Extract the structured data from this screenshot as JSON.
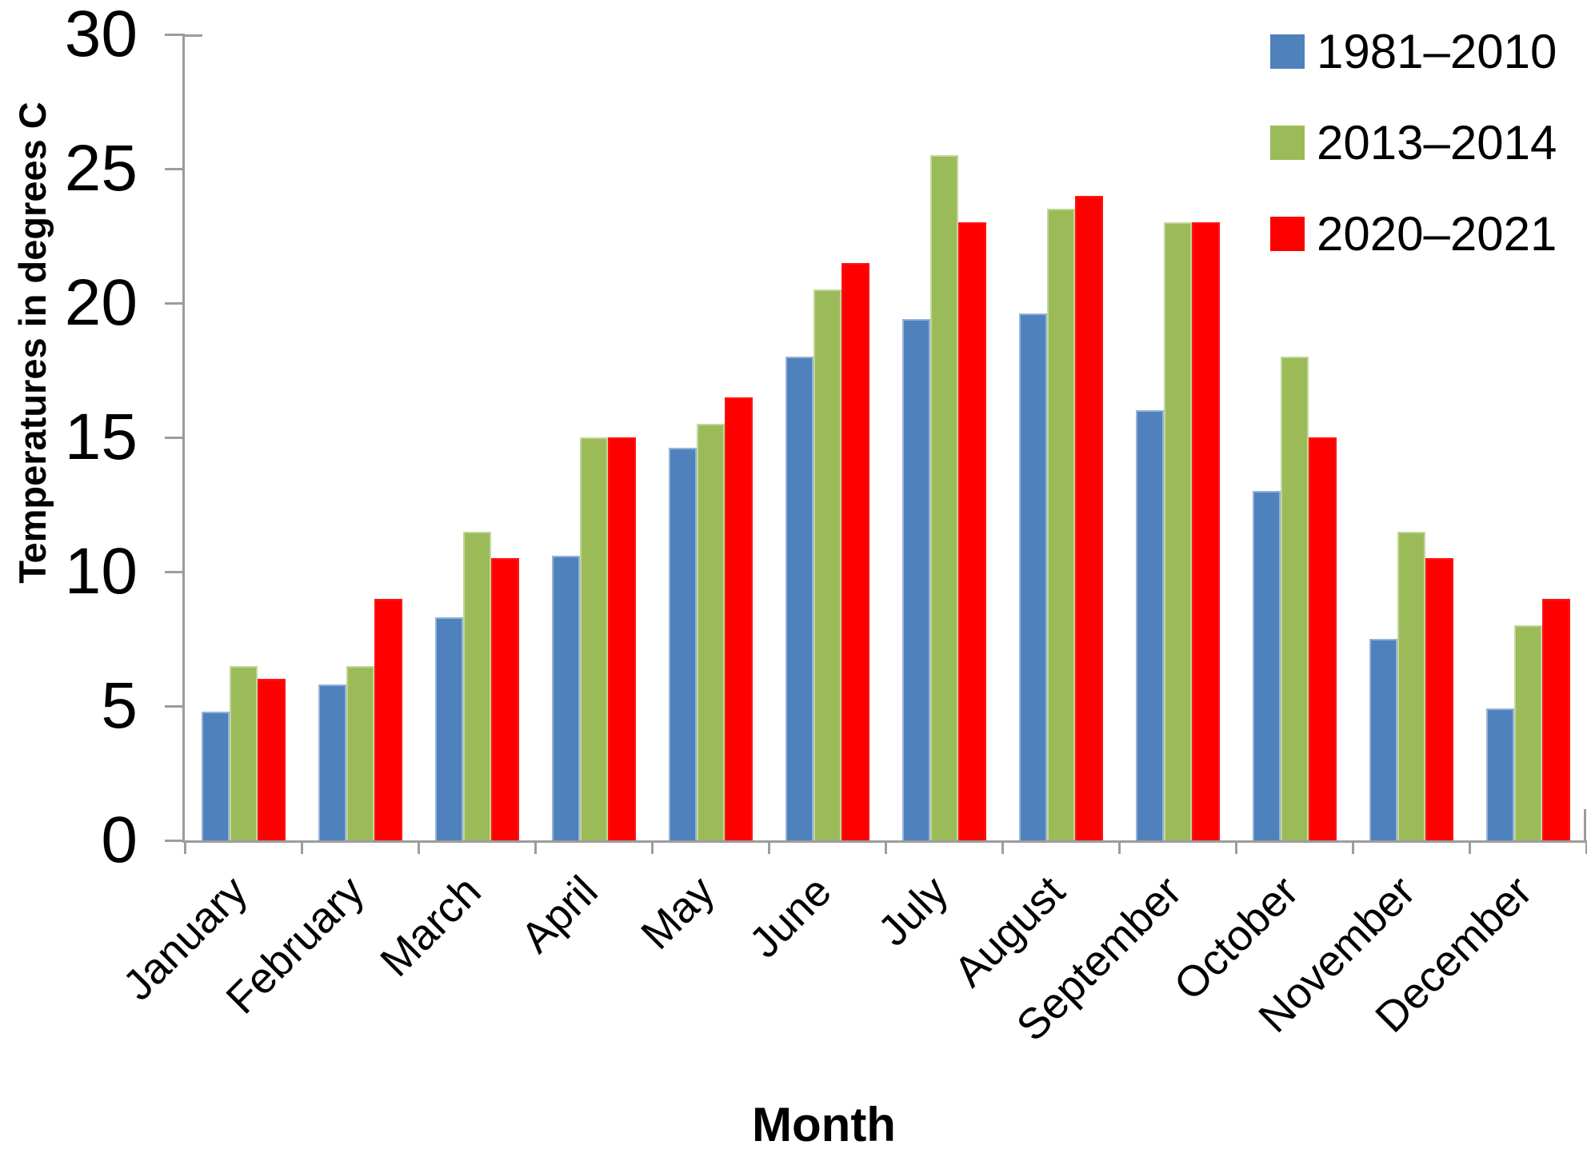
{
  "chart_data": {
    "type": "bar",
    "title": "",
    "xlabel": "Month",
    "ylabel": "Temperatures in degrees C",
    "ylim": [
      0,
      30
    ],
    "yticks": [
      0,
      5,
      10,
      15,
      20,
      25,
      30
    ],
    "grid": false,
    "legend_position": "top-right",
    "categories": [
      "January",
      "February",
      "March",
      "April",
      "May",
      "June",
      "July",
      "August",
      "September",
      "October",
      "November",
      "December"
    ],
    "series": [
      {
        "name": "1981–2010",
        "color": "#4F81BD",
        "border_color": "#95B3D7",
        "values": [
          4.8,
          5.8,
          8.3,
          10.6,
          14.6,
          18.0,
          19.4,
          19.6,
          16.0,
          13.0,
          7.5,
          4.9
        ]
      },
      {
        "name": "2013–2014",
        "color": "#9BBB59",
        "border_color": "#C3D69B",
        "values": [
          6.5,
          6.5,
          11.5,
          15.0,
          15.5,
          20.5,
          25.5,
          23.5,
          23.0,
          18.0,
          11.5,
          8.0
        ]
      },
      {
        "name": "2020–2021",
        "color": "#FF0000",
        "border_color": "#FF1414",
        "values": [
          6.0,
          9.0,
          10.5,
          15.0,
          16.5,
          21.5,
          23.0,
          24.0,
          23.0,
          15.0,
          10.5,
          9.0
        ]
      }
    ],
    "axis_color": "#9C9C9C",
    "text_color": "#000000"
  }
}
